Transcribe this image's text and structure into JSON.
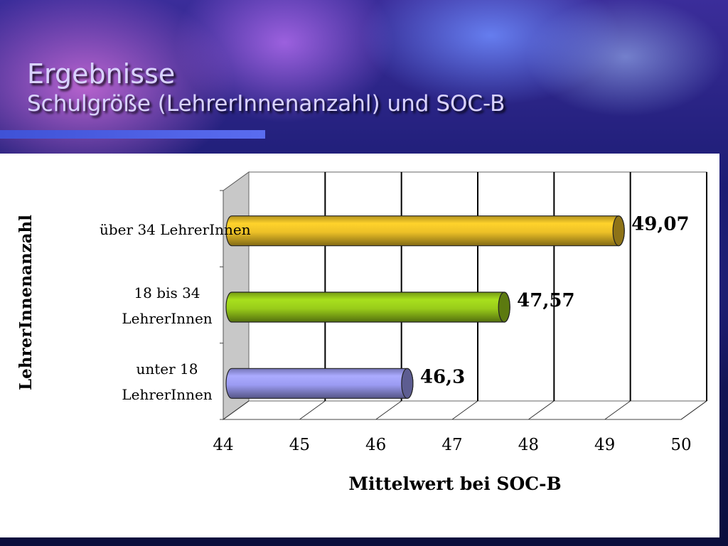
{
  "slide": {
    "title": "Ergebnisse",
    "subtitle": "Schulgröße (LehrerInnenanzahl) und SOC-B"
  },
  "chart_data": {
    "type": "bar",
    "orientation": "horizontal",
    "style": "3d",
    "categories": [
      "über 34 LehrerInnen",
      "18 bis 34 LehrerInnen",
      "unter 18 LehrerInnen"
    ],
    "category_lines": [
      [
        "über 34 LehrerInnen"
      ],
      [
        "18 bis 34",
        "LehrerInnen"
      ],
      [
        "unter 18",
        "LehrerInnen"
      ]
    ],
    "values": [
      49.07,
      47.57,
      46.3
    ],
    "data_labels": [
      "49,07",
      "47,57",
      "46,3"
    ],
    "colors": [
      "#ecc027",
      "#99cc1a",
      "#9b9bf2"
    ],
    "xlabel": "Mittelwert bei SOC-B",
    "ylabel": "LehrerInnenanzahl",
    "xlim": [
      44,
      50
    ],
    "xticks": [
      "44",
      "45",
      "46",
      "47",
      "48",
      "49",
      "50"
    ],
    "grid": true,
    "legend": "none"
  }
}
